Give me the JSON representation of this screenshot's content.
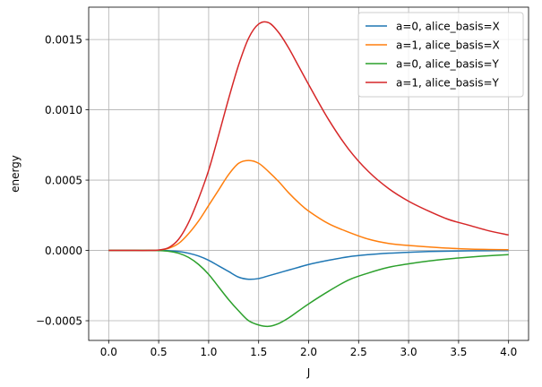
{
  "chart_data": {
    "type": "line",
    "title": "",
    "xlabel": "J",
    "ylabel": "energy",
    "xlim": [
      -0.2,
      4.2
    ],
    "ylim": [
      -0.00064,
      0.00173
    ],
    "xticks": [
      0.0,
      0.5,
      1.0,
      1.5,
      2.0,
      2.5,
      3.0,
      3.5,
      4.0
    ],
    "xtick_labels": [
      "0.0",
      "0.5",
      "1.0",
      "1.5",
      "2.0",
      "2.5",
      "3.0",
      "3.5",
      "4.0"
    ],
    "yticks": [
      -0.0005,
      0.0,
      0.0005,
      0.001,
      0.0015
    ],
    "ytick_labels": [
      "−0.0005",
      "0.0000",
      "0.0005",
      "0.0010",
      "0.0015"
    ],
    "grid": true,
    "legend_position": "top-right",
    "x": [
      0.0,
      0.2,
      0.4,
      0.5,
      0.6,
      0.7,
      0.8,
      0.9,
      1.0,
      1.1,
      1.2,
      1.3,
      1.4,
      1.5,
      1.6,
      1.7,
      1.8,
      1.9,
      2.0,
      2.2,
      2.4,
      2.6,
      2.8,
      3.0,
      3.2,
      3.4,
      3.6,
      3.8,
      4.0
    ],
    "series": [
      {
        "name": "a=0, alice_basis=X",
        "color": "#1f77b4",
        "values": [
          0.0,
          0.0,
          0.0,
          0.0,
          -2e-06,
          -8e-06,
          -2e-05,
          -4e-05,
          -7e-05,
          -0.00011,
          -0.00015,
          -0.00019,
          -0.000205,
          -0.0002,
          -0.00018,
          -0.00016,
          -0.00014,
          -0.00012,
          -0.0001,
          -7e-05,
          -4.5e-05,
          -3e-05,
          -2e-05,
          -1.3e-05,
          -8e-06,
          -5e-06,
          -3e-06,
          -2e-06,
          -1e-06
        ]
      },
      {
        "name": "a=1, alice_basis=X",
        "color": "#ff7f0e",
        "values": [
          0.0,
          0.0,
          0.0,
          2e-06,
          1.5e-05,
          5e-05,
          0.00012,
          0.00021,
          0.00032,
          0.00043,
          0.00054,
          0.00062,
          0.00064,
          0.00062,
          0.00056,
          0.00049,
          0.00041,
          0.00034,
          0.00028,
          0.00019,
          0.00013,
          8e-05,
          5e-05,
          3.5e-05,
          2.5e-05,
          1.6e-05,
          1e-05,
          7e-06,
          5e-06
        ]
      },
      {
        "name": "a=0, alice_basis=Y",
        "color": "#2ca02c",
        "values": [
          0.0,
          0.0,
          0.0,
          -1e-06,
          -6e-06,
          -2e-05,
          -5e-05,
          -0.0001,
          -0.00017,
          -0.00026,
          -0.00035,
          -0.00043,
          -0.0005,
          -0.00053,
          -0.00054,
          -0.00052,
          -0.00048,
          -0.00043,
          -0.00038,
          -0.00029,
          -0.00021,
          -0.00016,
          -0.00012,
          -9.5e-05,
          -7.5e-05,
          -6e-05,
          -4.8e-05,
          -3.8e-05,
          -3e-05
        ]
      },
      {
        "name": "a=1, alice_basis=Y",
        "color": "#d62728",
        "values": [
          0.0,
          0.0,
          0.0,
          3e-06,
          2e-05,
          8e-05,
          0.0002,
          0.00037,
          0.00057,
          0.00082,
          0.00108,
          0.00132,
          0.00151,
          0.00161,
          0.00162,
          0.00155,
          0.00144,
          0.00131,
          0.00118,
          0.00093,
          0.00072,
          0.00056,
          0.00044,
          0.00035,
          0.00028,
          0.00022,
          0.00018,
          0.00014,
          0.00011
        ]
      }
    ]
  }
}
